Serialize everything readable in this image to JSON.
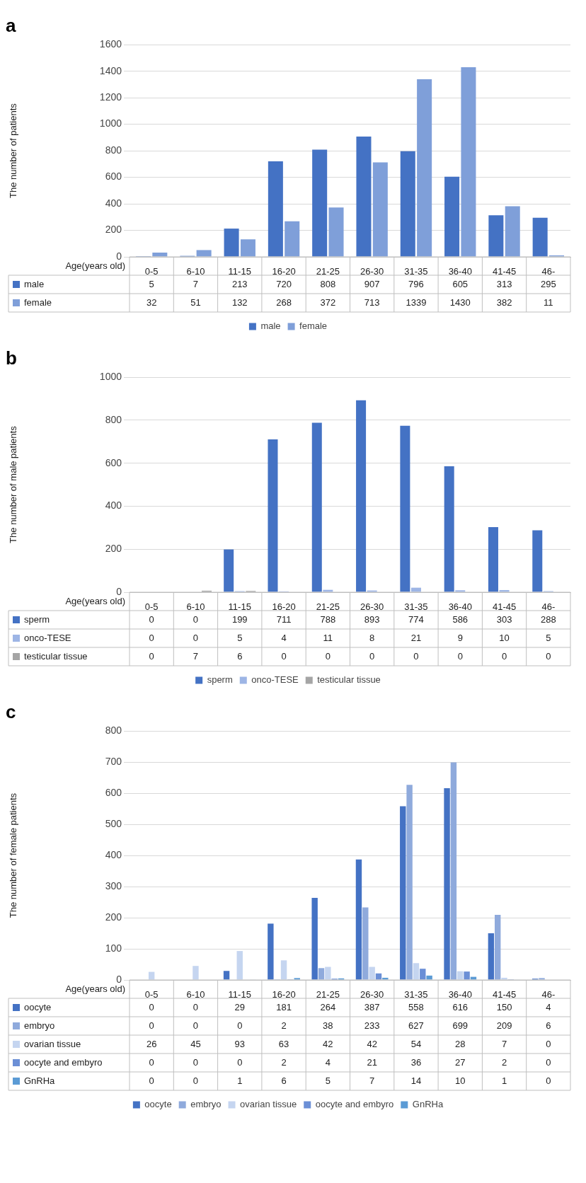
{
  "chart_data": [
    {
      "type": "bar",
      "title": "a",
      "ylabel": "The number of patients",
      "xlabel": "Age(years old)",
      "categories": [
        "0-5",
        "6-10",
        "11-15",
        "16-20",
        "21-25",
        "26-30",
        "31-35",
        "36-40",
        "41-45",
        "46-"
      ],
      "series": [
        {
          "name": "male",
          "color": "#4472c4",
          "values": [
            5,
            7,
            213,
            720,
            808,
            907,
            796,
            605,
            313,
            295
          ]
        },
        {
          "name": "female",
          "color": "#7f9fd9",
          "values": [
            32,
            51,
            132,
            268,
            372,
            713,
            1339,
            1430,
            382,
            11
          ]
        }
      ],
      "ylim": [
        0,
        1600
      ],
      "yticks": [
        0,
        200,
        400,
        600,
        800,
        1000,
        1200,
        1400,
        1600
      ],
      "grid": "y",
      "legend": "bottom",
      "data_labels": true
    },
    {
      "type": "bar",
      "title": "b",
      "ylabel": "The number of male patients",
      "xlabel": "Age(years old)",
      "categories": [
        "0-5",
        "6-10",
        "11-15",
        "16-20",
        "21-25",
        "26-30",
        "31-35",
        "36-40",
        "41-45",
        "46-"
      ],
      "series": [
        {
          "name": "sperm",
          "color": "#4472c4",
          "values": [
            0,
            0,
            199,
            711,
            788,
            893,
            774,
            586,
            303,
            288
          ]
        },
        {
          "name": "onco-TESE",
          "color": "#9db5e5",
          "values": [
            0,
            0,
            5,
            4,
            11,
            8,
            21,
            9,
            10,
            5
          ]
        },
        {
          "name": "testicular tissue",
          "color": "#a5a5a5",
          "values": [
            0,
            7,
            6,
            0,
            0,
            0,
            0,
            0,
            0,
            0
          ]
        }
      ],
      "ylim": [
        0,
        1000
      ],
      "yticks": [
        0,
        200,
        400,
        600,
        800,
        1000
      ],
      "grid": "y",
      "legend": "bottom",
      "data_labels": true
    },
    {
      "type": "bar",
      "title": "c",
      "ylabel": "The number of female patients",
      "xlabel": "Age(years old)",
      "categories": [
        "0-5",
        "6-10",
        "11-15",
        "16-20",
        "21-25",
        "26-30",
        "31-35",
        "36-40",
        "41-45",
        "46-"
      ],
      "series": [
        {
          "name": "oocyte",
          "color": "#4472c4",
          "values": [
            0,
            0,
            29,
            181,
            264,
            387,
            558,
            616,
            150,
            4
          ]
        },
        {
          "name": "embryo",
          "color": "#8faadc",
          "values": [
            0,
            0,
            0,
            2,
            38,
            233,
            627,
            699,
            209,
            6
          ]
        },
        {
          "name": "ovarian tissue",
          "color": "#c5d5f0",
          "values": [
            26,
            45,
            93,
            63,
            42,
            42,
            54,
            28,
            7,
            0
          ]
        },
        {
          "name": "oocyte and embyro",
          "color": "#6b8fd6",
          "values": [
            0,
            0,
            0,
            2,
            4,
            21,
            36,
            27,
            2,
            0
          ]
        },
        {
          "name": "GnRHa",
          "color": "#5b9bd5",
          "values": [
            0,
            0,
            1,
            6,
            5,
            7,
            14,
            10,
            1,
            0
          ]
        }
      ],
      "ylim": [
        0,
        800
      ],
      "yticks": [
        0,
        100,
        200,
        300,
        400,
        500,
        600,
        700,
        800
      ],
      "grid": "y",
      "legend": "bottom",
      "data_labels": true
    }
  ]
}
